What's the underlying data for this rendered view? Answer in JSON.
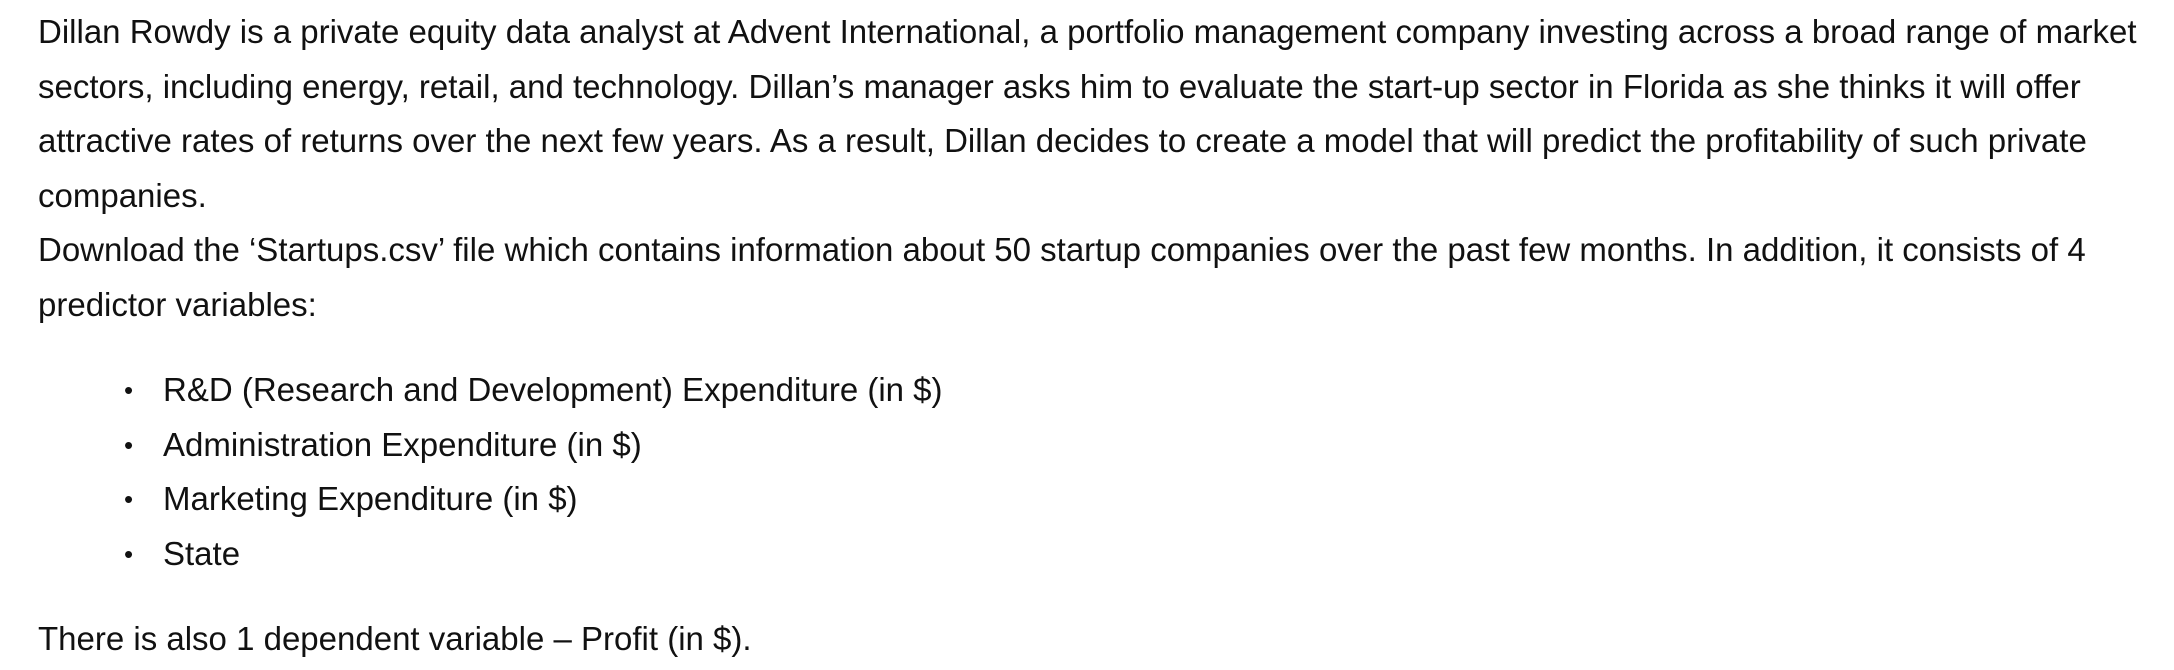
{
  "document": {
    "paragraphs": [
      "Dillan Rowdy is a private equity data analyst at Advent International, a portfolio management company investing across a broad range of market sectors, including energy, retail, and technology. Dillan’s manager asks him to evaluate the start-up sector in Florida as she thinks it will offer attractive rates of returns over the next few years. As a result, Dillan decides to create a model that will predict the profitability of such private companies.",
      "Download the ‘Startups.csv’ file which contains information about 50 startup companies over the past few months. In addition, it consists of 4 predictor variables:"
    ],
    "bullet_glyph": "•",
    "predictors": [
      "R&D (Research and Development) Expenditure (in $)",
      "Administration Expenditure (in $)",
      "Marketing Expenditure (in $)",
      "State"
    ],
    "closing": "There is also 1 dependent variable – Profit (in $)."
  }
}
